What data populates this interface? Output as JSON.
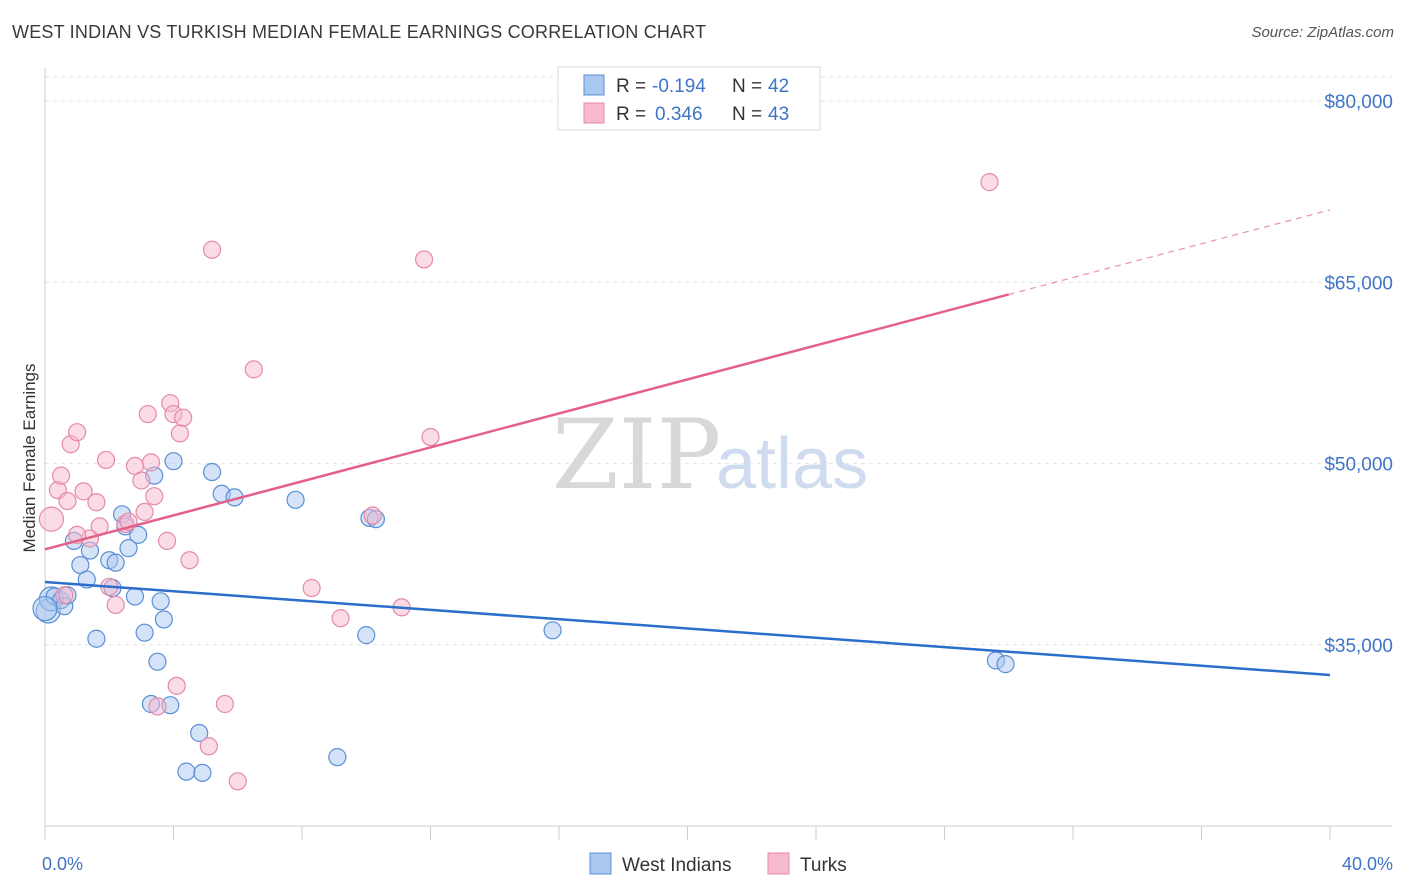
{
  "title": "WEST INDIAN VS TURKISH MEDIAN FEMALE EARNINGS CORRELATION CHART",
  "source": "Source: ZipAtlas.com",
  "watermark": {
    "zip": "ZIP",
    "atlas": "atlas"
  },
  "colors": {
    "blue_fill": "#a9c8f0",
    "blue_stroke": "#5b8fd6",
    "blue_line": "#2c6ecb",
    "pink_fill": "#f7b9cd",
    "pink_stroke": "#e58aa8",
    "pink_line": "#e4608b",
    "accent_text": "#3f74c9"
  },
  "legend": {
    "rows": [
      {
        "r_label": "R =",
        "r_value": "-0.194",
        "n_label": "N =",
        "n_value": "42"
      },
      {
        "r_label": "R =",
        "r_value": "0.346",
        "n_label": "N =",
        "n_value": "43"
      }
    ]
  },
  "chart_data": {
    "type": "scatter",
    "title": "WEST INDIAN VS TURKISH MEDIAN FEMALE EARNINGS CORRELATION CHART",
    "xlabel": "",
    "ylabel": "Median Female Earnings",
    "xlim": [
      0,
      40
    ],
    "ylim": [
      20000,
      82000
    ],
    "x_tick_labels": [
      "0.0%",
      "40.0%"
    ],
    "y_ticks": [
      35000,
      50000,
      65000,
      80000
    ],
    "y_tick_labels": [
      "$35,000",
      "$50,000",
      "$65,000",
      "$80,000"
    ],
    "grid": true,
    "series": [
      {
        "name": "West Indians",
        "color": "blue",
        "points": [
          [
            0.1,
            37800
          ],
          [
            0.2,
            38800
          ],
          [
            0.3,
            39000
          ],
          [
            0.5,
            38700
          ],
          [
            0.6,
            38200
          ],
          [
            0.7,
            39100
          ],
          [
            0.9,
            43600
          ],
          [
            1.1,
            41600
          ],
          [
            1.3,
            40400
          ],
          [
            1.4,
            42800
          ],
          [
            1.6,
            35500
          ],
          [
            2.0,
            42000
          ],
          [
            2.1,
            39700
          ],
          [
            2.2,
            41800
          ],
          [
            2.4,
            45800
          ],
          [
            2.5,
            44800
          ],
          [
            2.6,
            43000
          ],
          [
            2.8,
            39000
          ],
          [
            2.9,
            44100
          ],
          [
            3.1,
            36000
          ],
          [
            3.3,
            30100
          ],
          [
            3.4,
            49000
          ],
          [
            3.5,
            33600
          ],
          [
            3.6,
            38600
          ],
          [
            3.7,
            37100
          ],
          [
            3.9,
            30000
          ],
          [
            4.0,
            50200
          ],
          [
            4.4,
            24500
          ],
          [
            4.8,
            27700
          ],
          [
            4.9,
            24400
          ],
          [
            5.2,
            49300
          ],
          [
            5.5,
            47500
          ],
          [
            5.9,
            47200
          ],
          [
            7.8,
            47000
          ],
          [
            9.1,
            25700
          ],
          [
            10.0,
            35800
          ],
          [
            10.1,
            45500
          ],
          [
            10.3,
            45400
          ],
          [
            15.8,
            36200
          ],
          [
            29.6,
            33700
          ],
          [
            29.9,
            33400
          ],
          [
            0.0,
            38000
          ]
        ],
        "trend": {
          "x": [
            0,
            40
          ],
          "y": [
            40200,
            32500
          ],
          "style": "solid"
        }
      },
      {
        "name": "Turks",
        "color": "pink",
        "points": [
          [
            0.2,
            45400
          ],
          [
            0.4,
            47800
          ],
          [
            0.5,
            49000
          ],
          [
            0.7,
            46900
          ],
          [
            0.8,
            51600
          ],
          [
            1.0,
            52600
          ],
          [
            1.2,
            47700
          ],
          [
            1.4,
            43800
          ],
          [
            1.6,
            46800
          ],
          [
            1.7,
            44800
          ],
          [
            1.9,
            50300
          ],
          [
            2.0,
            39800
          ],
          [
            2.2,
            38300
          ],
          [
            2.5,
            45000
          ],
          [
            2.8,
            49800
          ],
          [
            3.0,
            48600
          ],
          [
            3.1,
            46000
          ],
          [
            3.2,
            54100
          ],
          [
            3.4,
            47300
          ],
          [
            3.5,
            29900
          ],
          [
            3.8,
            43600
          ],
          [
            3.9,
            55000
          ],
          [
            4.0,
            54100
          ],
          [
            4.1,
            31600
          ],
          [
            4.2,
            52500
          ],
          [
            4.3,
            53800
          ],
          [
            4.5,
            42000
          ],
          [
            5.1,
            26600
          ],
          [
            5.2,
            67700
          ],
          [
            5.6,
            30100
          ],
          [
            6.0,
            23700
          ],
          [
            6.5,
            57800
          ],
          [
            8.3,
            39700
          ],
          [
            9.2,
            37200
          ],
          [
            10.2,
            45700
          ],
          [
            11.1,
            38100
          ],
          [
            11.8,
            66900
          ],
          [
            12.0,
            52200
          ],
          [
            29.4,
            73300
          ],
          [
            2.6,
            45200
          ],
          [
            1.0,
            44100
          ],
          [
            0.6,
            39100
          ],
          [
            3.3,
            50100
          ]
        ],
        "trend": {
          "x": [
            0,
            30
          ],
          "y": [
            42900,
            64000
          ],
          "style": "solid",
          "extended_to": [
            40,
            71000
          ],
          "extended_style": "dashed"
        }
      }
    ]
  },
  "bottom_legend": [
    {
      "label": "West Indians",
      "color": "blue"
    },
    {
      "label": "Turks",
      "color": "pink"
    }
  ]
}
